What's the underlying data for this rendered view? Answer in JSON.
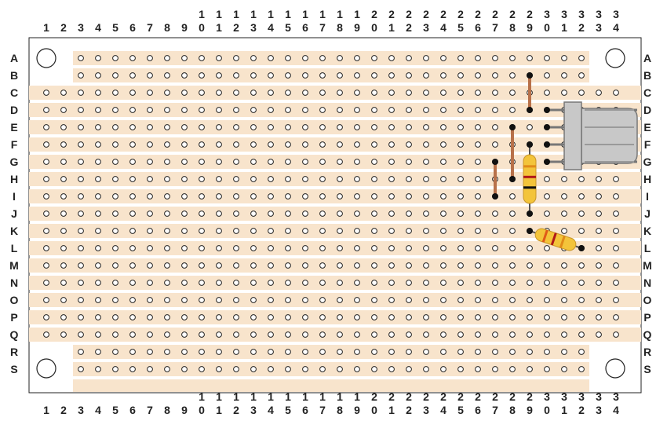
{
  "board": {
    "columns": [
      "1",
      "2",
      "3",
      "4",
      "5",
      "6",
      "7",
      "8",
      "9",
      "10",
      "11",
      "12",
      "13",
      "14",
      "15",
      "16",
      "17",
      "18",
      "19",
      "20",
      "21",
      "22",
      "23",
      "24",
      "25",
      "26",
      "27",
      "28",
      "29",
      "30",
      "31",
      "32",
      "33",
      "34"
    ],
    "rows": [
      "A",
      "B",
      "C",
      "D",
      "E",
      "F",
      "G",
      "H",
      "I",
      "J",
      "K",
      "L",
      "M",
      "N",
      "O",
      "P",
      "Q",
      "R",
      "S"
    ],
    "colors": {
      "board": "#ffffff",
      "strip": "#f8e4cc",
      "hole": "#ffffff",
      "wire": "#b8714a",
      "solder": "#111111"
    }
  },
  "components": {
    "wires": [
      {
        "from": "B29",
        "to": "D29"
      },
      {
        "from": "E28",
        "to": "H28"
      },
      {
        "from": "G27",
        "to": "I27"
      }
    ],
    "resistors": [
      {
        "from": "F29",
        "to": "J29",
        "color": "#f3c43a",
        "bands": [
          "#e08a18",
          "#b01818",
          "#111111"
        ]
      },
      {
        "from": "K29",
        "to": "L32",
        "color": "#f3c43a",
        "bands": [
          "#e05a18",
          "#b01818",
          "#e08a18"
        ]
      }
    ],
    "connector": {
      "pins": [
        "D30",
        "E30",
        "F30",
        "G30"
      ],
      "body_color": "#c8c8c8"
    }
  }
}
